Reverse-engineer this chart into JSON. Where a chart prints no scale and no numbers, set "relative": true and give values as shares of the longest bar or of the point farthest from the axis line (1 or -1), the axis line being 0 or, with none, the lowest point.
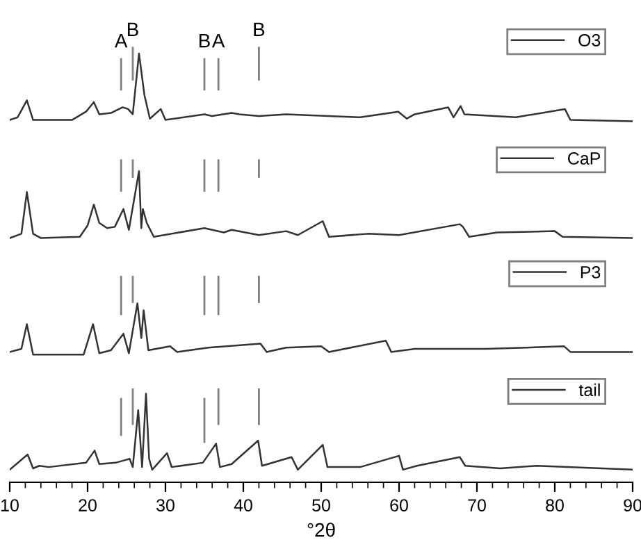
{
  "chart_data": {
    "type": "line",
    "relative": true,
    "xlabel": "°2θ",
    "xlim": [
      10,
      90
    ],
    "xticks": [
      10,
      {
        "value": 12,
        "label": null
      },
      {
        "value": 14,
        "label": null
      },
      {
        "value": 16,
        "label": null
      },
      {
        "value": 18,
        "label": null
      },
      20,
      {
        "value": 22,
        "label": null
      },
      {
        "value": 24,
        "label": null
      },
      {
        "value": 26,
        "label": null
      },
      {
        "value": 28,
        "label": null
      },
      30,
      {
        "value": 32,
        "label": null
      },
      {
        "value": 34,
        "label": null
      },
      {
        "value": 36,
        "label": null
      },
      {
        "value": 38,
        "label": null
      },
      40,
      {
        "value": 42,
        "label": null
      },
      {
        "value": 44,
        "label": null
      },
      {
        "value": 46,
        "label": null
      },
      {
        "value": 48,
        "label": null
      },
      50,
      {
        "value": 52,
        "label": null
      },
      {
        "value": 54,
        "label": null
      },
      {
        "value": 56,
        "label": null
      },
      {
        "value": 58,
        "label": null
      },
      60,
      {
        "value": 62,
        "label": null
      },
      {
        "value": 64,
        "label": null
      },
      {
        "value": 66,
        "label": null
      },
      {
        "value": 68,
        "label": null
      },
      70,
      {
        "value": 72,
        "label": null
      },
      {
        "value": 74,
        "label": null
      },
      {
        "value": 76,
        "label": null
      },
      {
        "value": 78,
        "label": null
      },
      80,
      {
        "value": 82,
        "label": null
      },
      {
        "value": 84,
        "label": null
      },
      {
        "value": 86,
        "label": null
      },
      {
        "value": 88,
        "label": null
      },
      90
    ],
    "legend": "right",
    "marker": "none",
    "annotations": [
      {
        "text": "A",
        "x": 24.3,
        "y": 0.974
      },
      {
        "text": "B",
        "x": 25.8,
        "y": 1.0
      },
      {
        "text": "B",
        "x": 35.0,
        "y": 0.974
      },
      {
        "text": "A",
        "x": 36.8,
        "y": 0.974
      },
      {
        "text": "B",
        "x": 42.0,
        "y": 1.0
      }
    ],
    "series": [
      {
        "name": "O3",
        "color": "#333333",
        "x": [
          10,
          11,
          11.5,
          12.2,
          13,
          18,
          19.8,
          20.8,
          21.5,
          23,
          24.5,
          25.2,
          25.8,
          26.6,
          27.3,
          28,
          29.4,
          30,
          35,
          36,
          38.5,
          39.5,
          42,
          45.5,
          55,
          59.9,
          61,
          62,
          66.3,
          67,
          67.9,
          68.4,
          75,
          81.3,
          82,
          90
        ],
        "values": [
          0.834,
          0.84,
          0.856,
          0.879,
          0.834,
          0.834,
          0.853,
          0.875,
          0.847,
          0.85,
          0.863,
          0.859,
          0.847,
          0.987,
          0.891,
          0.837,
          0.859,
          0.834,
          0.847,
          0.843,
          0.85,
          0.847,
          0.843,
          0.847,
          0.84,
          0.853,
          0.837,
          0.847,
          0.863,
          0.84,
          0.866,
          0.847,
          0.84,
          0.859,
          0.834,
          0.831
        ]
      },
      {
        "name": "CaP",
        "color": "#333333",
        "x": [
          10,
          11.5,
          12.2,
          13,
          14,
          19,
          20,
          20.8,
          21.5,
          22.5,
          23.5,
          24.6,
          25.3,
          26.6,
          26.9,
          27.1,
          27.6,
          28.5,
          35,
          37.5,
          38.5,
          42,
          45.5,
          47,
          50.2,
          51,
          56,
          60,
          67.8,
          68.2,
          69,
          72.6,
          80,
          81,
          90
        ],
        "values": [
          0.562,
          0.572,
          0.668,
          0.572,
          0.562,
          0.565,
          0.591,
          0.639,
          0.597,
          0.585,
          0.588,
          0.629,
          0.581,
          0.716,
          0.585,
          0.629,
          0.597,
          0.565,
          0.585,
          0.575,
          0.581,
          0.569,
          0.578,
          0.569,
          0.601,
          0.565,
          0.572,
          0.569,
          0.594,
          0.588,
          0.565,
          0.575,
          0.578,
          0.565,
          0.562
        ]
      },
      {
        "name": "P3",
        "color": "#333333",
        "x": [
          10,
          11.5,
          12.2,
          13,
          19.5,
          20.7,
          21.5,
          23,
          24.6,
          25.3,
          26.4,
          26.9,
          27.2,
          27.8,
          30.6,
          31.5,
          35.5,
          42.2,
          43,
          45.5,
          50,
          51,
          58.3,
          59,
          62,
          71.2,
          81.2,
          82,
          90
        ],
        "values": [
          0.3,
          0.307,
          0.364,
          0.294,
          0.294,
          0.364,
          0.297,
          0.304,
          0.342,
          0.297,
          0.412,
          0.332,
          0.396,
          0.304,
          0.313,
          0.3,
          0.31,
          0.319,
          0.3,
          0.31,
          0.313,
          0.3,
          0.326,
          0.3,
          0.307,
          0.307,
          0.313,
          0.3,
          0.3
        ]
      },
      {
        "name": "tail",
        "color": "#333333",
        "x": [
          10,
          12.3,
          13,
          13.8,
          15,
          19.8,
          20.9,
          21.5,
          23.6,
          24.8,
          25.4,
          25.8,
          26.5,
          27.0,
          27.5,
          27.9,
          28.3,
          30.2,
          30.8,
          34.8,
          36.5,
          37,
          38.5,
          41.9,
          42.4,
          46.2,
          47,
          50.2,
          50.8,
          55,
          60,
          60.5,
          62.3,
          67.8,
          68.5,
          73,
          77.7,
          90
        ],
        "values": [
          0.029,
          0.064,
          0.032,
          0.038,
          0.035,
          0.045,
          0.073,
          0.042,
          0.045,
          0.051,
          0.054,
          0.035,
          0.166,
          0.035,
          0.204,
          0.054,
          0.029,
          0.067,
          0.035,
          0.045,
          0.089,
          0.035,
          0.042,
          0.096,
          0.038,
          0.058,
          0.029,
          0.086,
          0.035,
          0.035,
          0.061,
          0.029,
          0.038,
          0.058,
          0.038,
          0.032,
          0.038,
          0.029
        ]
      },
      {
        "color": "#808080",
        "x": [
          24.3,
          24.3
        ],
        "values": [
          0.904,
          0.974
        ]
      },
      {
        "color": "#808080",
        "x": [
          25.8,
          25.8
        ],
        "values": [
          0.927,
          1.0
        ]
      },
      {
        "color": "#808080",
        "x": [
          35.0,
          35.0
        ],
        "values": [
          0.904,
          0.974
        ]
      },
      {
        "color": "#808080",
        "x": [
          36.8,
          36.8
        ],
        "values": [
          0.904,
          0.974
        ]
      },
      {
        "color": "#808080",
        "x": [
          42.0,
          42.0
        ],
        "values": [
          0.927,
          1.0
        ]
      },
      {
        "color": "#808080",
        "x": [
          24.3,
          24.3
        ],
        "values": [
          0.671,
          0.741
        ]
      },
      {
        "color": "#808080",
        "x": [
          25.8,
          25.8
        ],
        "values": [
          0.703,
          0.741
        ]
      },
      {
        "color": "#808080",
        "x": [
          35.0,
          35.0
        ],
        "values": [
          0.671,
          0.741
        ]
      },
      {
        "color": "#808080",
        "x": [
          36.8,
          36.8
        ],
        "values": [
          0.671,
          0.741
        ]
      },
      {
        "color": "#808080",
        "x": [
          42.0,
          42.0
        ],
        "values": [
          0.703,
          0.741
        ]
      },
      {
        "color": "#808080",
        "x": [
          24.3,
          24.3
        ],
        "values": [
          0.387,
          0.473
        ]
      },
      {
        "color": "#808080",
        "x": [
          25.8,
          25.8
        ],
        "values": [
          0.415,
          0.473
        ]
      },
      {
        "color": "#808080",
        "x": [
          35.0,
          35.0
        ],
        "values": [
          0.387,
          0.473
        ]
      },
      {
        "color": "#808080",
        "x": [
          36.8,
          36.8
        ],
        "values": [
          0.387,
          0.473
        ]
      },
      {
        "color": "#808080",
        "x": [
          42.0,
          42.0
        ],
        "values": [
          0.415,
          0.473
        ]
      },
      {
        "color": "#808080",
        "x": [
          24.3,
          24.3
        ],
        "values": [
          0.109,
          0.192
        ]
      },
      {
        "color": "#808080",
        "x": [
          25.8,
          25.8
        ],
        "values": [
          0.134,
          0.214
        ]
      },
      {
        "color": "#808080",
        "x": [
          35.0,
          35.0
        ],
        "values": [
          0.093,
          0.192
        ]
      },
      {
        "color": "#808080",
        "x": [
          36.8,
          36.8
        ],
        "values": [
          0.134,
          0.214
        ]
      },
      {
        "color": "#808080",
        "x": [
          42.0,
          42.0
        ],
        "values": [
          0.134,
          0.214
        ]
      }
    ]
  }
}
